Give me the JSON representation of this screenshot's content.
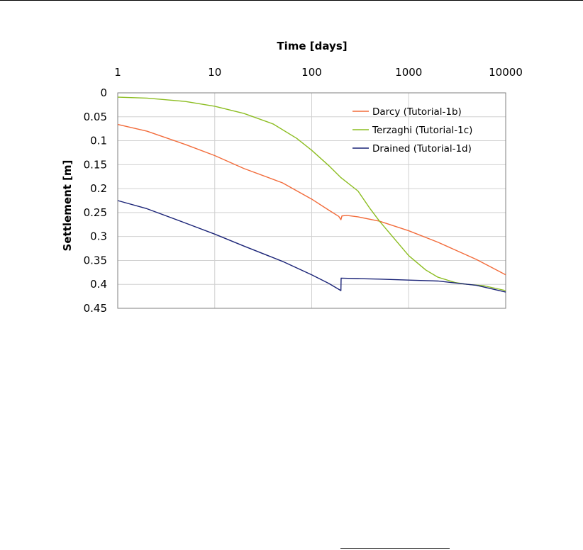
{
  "chart_data": {
    "type": "line",
    "xlabel": "Time [days]",
    "ylabel": "Settlement [m]",
    "x_scale": "log",
    "x_axis_position": "top",
    "y_inverted": true,
    "xlim": [
      1,
      10000
    ],
    "ylim": [
      0,
      0.45
    ],
    "x_ticks": [
      "1",
      "10",
      "100",
      "1000",
      "10000"
    ],
    "y_ticks": [
      "0",
      "0.05",
      "0.1",
      "0.15",
      "0.2",
      "0.25",
      "0.3",
      "0.35",
      "0.4",
      "0.45"
    ],
    "grid": true,
    "legend_position": "top-right",
    "series": [
      {
        "name": "Darcy (Tutorial-1b)",
        "color": "#f26b3a",
        "points": [
          [
            1,
            0.066
          ],
          [
            2,
            0.08
          ],
          [
            5,
            0.108
          ],
          [
            10,
            0.131
          ],
          [
            20,
            0.158
          ],
          [
            50,
            0.188
          ],
          [
            100,
            0.222
          ],
          [
            150,
            0.245
          ],
          [
            190,
            0.258
          ],
          [
            200,
            0.265
          ],
          [
            205,
            0.257
          ],
          [
            230,
            0.256
          ],
          [
            300,
            0.259
          ],
          [
            500,
            0.268
          ],
          [
            1000,
            0.288
          ],
          [
            2000,
            0.312
          ],
          [
            5000,
            0.348
          ],
          [
            10000,
            0.38
          ]
        ]
      },
      {
        "name": "Terzaghi (Tutorial-1c)",
        "color": "#8cbd21",
        "points": [
          [
            1,
            0.009
          ],
          [
            2,
            0.011
          ],
          [
            5,
            0.018
          ],
          [
            10,
            0.028
          ],
          [
            20,
            0.043
          ],
          [
            40,
            0.065
          ],
          [
            70,
            0.095
          ],
          [
            100,
            0.12
          ],
          [
            150,
            0.152
          ],
          [
            200,
            0.177
          ],
          [
            300,
            0.205
          ],
          [
            400,
            0.242
          ],
          [
            500,
            0.268
          ],
          [
            700,
            0.303
          ],
          [
            1000,
            0.34
          ],
          [
            1500,
            0.37
          ],
          [
            2000,
            0.385
          ],
          [
            3000,
            0.396
          ],
          [
            4000,
            0.4
          ],
          [
            6000,
            0.403
          ],
          [
            10000,
            0.413
          ]
        ]
      },
      {
        "name": "Drained (Tutorial-1d)",
        "color": "#1a2377",
        "points": [
          [
            1,
            0.225
          ],
          [
            2,
            0.242
          ],
          [
            5,
            0.272
          ],
          [
            10,
            0.295
          ],
          [
            20,
            0.32
          ],
          [
            50,
            0.352
          ],
          [
            100,
            0.38
          ],
          [
            150,
            0.398
          ],
          [
            200,
            0.413
          ],
          [
            201,
            0.387
          ],
          [
            300,
            0.388
          ],
          [
            500,
            0.389
          ],
          [
            1000,
            0.391
          ],
          [
            2000,
            0.393
          ],
          [
            5000,
            0.402
          ],
          [
            10000,
            0.416
          ]
        ]
      }
    ]
  }
}
